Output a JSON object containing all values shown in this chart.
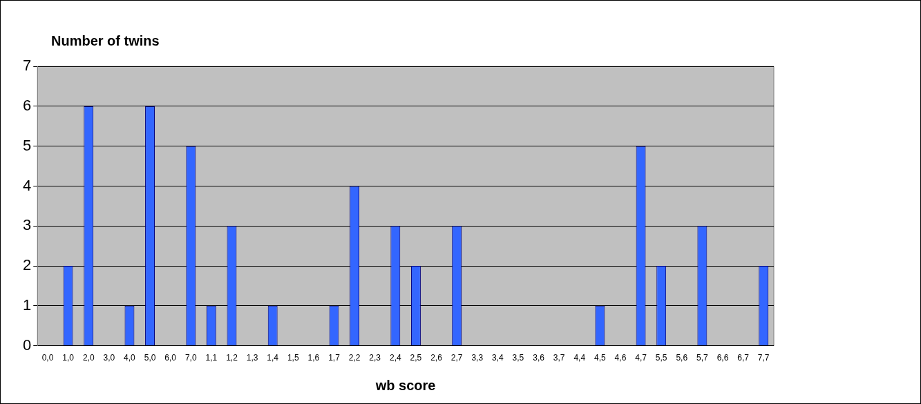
{
  "chart_data": {
    "type": "bar",
    "ylabel": "Number of twins",
    "xlabel": "wb score",
    "categories": [
      "0,0",
      "1,0",
      "2,0",
      "3,0",
      "4,0",
      "5,0",
      "6,0",
      "7,0",
      "1,1",
      "1,2",
      "1,3",
      "1,4",
      "1,5",
      "1,6",
      "1,7",
      "2,2",
      "2,3",
      "2,4",
      "2,5",
      "2,6",
      "2,7",
      "3,3",
      "3,4",
      "3,5",
      "3,6",
      "3,7",
      "4,4",
      "4,5",
      "4,6",
      "4,7",
      "5,5",
      "5,6",
      "5,7",
      "6,6",
      "6,7",
      "7,7"
    ],
    "values": [
      0,
      2,
      6,
      0,
      1,
      6,
      0,
      5,
      1,
      3,
      0,
      1,
      0,
      0,
      1,
      4,
      0,
      3,
      2,
      0,
      3,
      0,
      0,
      0,
      0,
      0,
      0,
      1,
      0,
      5,
      2,
      0,
      3,
      0,
      0,
      2
    ],
    "color": "#3366ff",
    "ylim": [
      0,
      7
    ],
    "yticks": [
      0,
      1,
      2,
      3,
      4,
      5,
      6,
      7
    ],
    "grid": "y",
    "legend": false
  }
}
